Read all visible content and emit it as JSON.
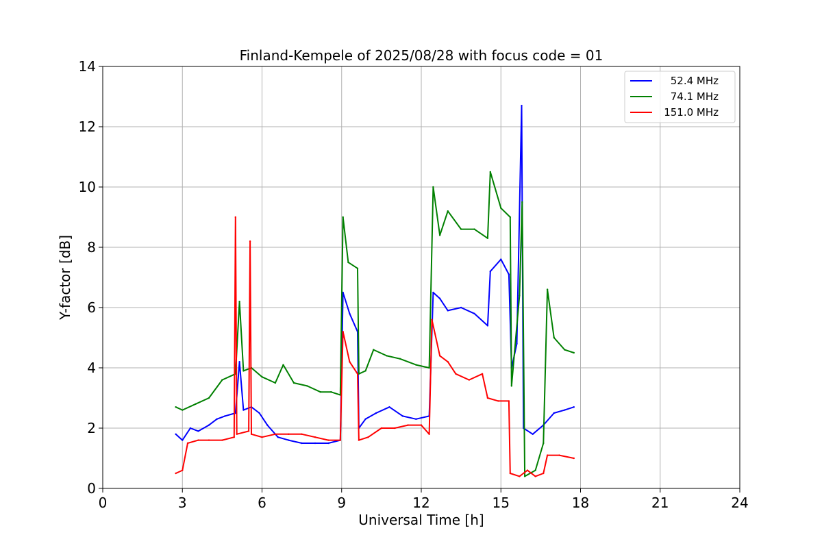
{
  "chart_data": {
    "type": "line",
    "title": "Finland-Kempele of 2025/08/28 with focus code = 01",
    "xlabel": "Universal Time [h]",
    "ylabel": "Y-factor [dB]",
    "xlim": [
      0,
      24
    ],
    "ylim": [
      0,
      14
    ],
    "xticks": [
      0,
      3,
      6,
      9,
      12,
      15,
      18,
      21,
      24
    ],
    "yticks": [
      0,
      2,
      4,
      6,
      8,
      10,
      12,
      14
    ],
    "grid": true,
    "legend_position": "top-right",
    "series": [
      {
        "name": "52.4 MHz",
        "color": "#0000ff",
        "points": [
          [
            2.75,
            1.8
          ],
          [
            3.0,
            1.6
          ],
          [
            3.3,
            2.0
          ],
          [
            3.6,
            1.9
          ],
          [
            4.0,
            2.1
          ],
          [
            4.3,
            2.3
          ],
          [
            4.6,
            2.4
          ],
          [
            5.0,
            2.5
          ],
          [
            5.15,
            4.2
          ],
          [
            5.3,
            2.6
          ],
          [
            5.6,
            2.7
          ],
          [
            5.9,
            2.5
          ],
          [
            6.2,
            2.1
          ],
          [
            6.6,
            1.7
          ],
          [
            7.0,
            1.6
          ],
          [
            7.5,
            1.5
          ],
          [
            8.0,
            1.5
          ],
          [
            8.5,
            1.5
          ],
          [
            8.95,
            1.6
          ],
          [
            9.05,
            6.5
          ],
          [
            9.3,
            5.8
          ],
          [
            9.6,
            5.2
          ],
          [
            9.65,
            2.0
          ],
          [
            9.9,
            2.3
          ],
          [
            10.3,
            2.5
          ],
          [
            10.8,
            2.7
          ],
          [
            11.3,
            2.4
          ],
          [
            11.8,
            2.3
          ],
          [
            12.3,
            2.4
          ],
          [
            12.45,
            6.5
          ],
          [
            12.7,
            6.3
          ],
          [
            13.0,
            5.9
          ],
          [
            13.5,
            6.0
          ],
          [
            14.0,
            5.8
          ],
          [
            14.5,
            5.4
          ],
          [
            14.6,
            7.2
          ],
          [
            15.0,
            7.6
          ],
          [
            15.3,
            7.1
          ],
          [
            15.4,
            4.0
          ],
          [
            15.6,
            4.8
          ],
          [
            15.78,
            12.7
          ],
          [
            15.85,
            2.0
          ],
          [
            16.2,
            1.8
          ],
          [
            16.6,
            2.1
          ],
          [
            17.0,
            2.5
          ],
          [
            17.4,
            2.6
          ],
          [
            17.75,
            2.7
          ]
        ]
      },
      {
        "name": "74.1 MHz",
        "color": "#008000",
        "points": [
          [
            2.75,
            2.7
          ],
          [
            3.0,
            2.6
          ],
          [
            3.5,
            2.8
          ],
          [
            4.0,
            3.0
          ],
          [
            4.5,
            3.6
          ],
          [
            5.0,
            3.8
          ],
          [
            5.15,
            6.2
          ],
          [
            5.3,
            3.9
          ],
          [
            5.6,
            4.0
          ],
          [
            6.0,
            3.7
          ],
          [
            6.5,
            3.5
          ],
          [
            6.8,
            4.1
          ],
          [
            7.2,
            3.5
          ],
          [
            7.7,
            3.4
          ],
          [
            8.2,
            3.2
          ],
          [
            8.6,
            3.2
          ],
          [
            8.95,
            3.1
          ],
          [
            9.05,
            9.0
          ],
          [
            9.25,
            7.5
          ],
          [
            9.6,
            7.3
          ],
          [
            9.65,
            3.8
          ],
          [
            9.9,
            3.9
          ],
          [
            10.2,
            4.6
          ],
          [
            10.7,
            4.4
          ],
          [
            11.2,
            4.3
          ],
          [
            11.8,
            4.1
          ],
          [
            12.3,
            4.0
          ],
          [
            12.45,
            10.0
          ],
          [
            12.7,
            8.4
          ],
          [
            13.0,
            9.2
          ],
          [
            13.5,
            8.6
          ],
          [
            14.0,
            8.6
          ],
          [
            14.5,
            8.3
          ],
          [
            14.6,
            10.5
          ],
          [
            15.0,
            9.3
          ],
          [
            15.35,
            9.0
          ],
          [
            15.4,
            3.4
          ],
          [
            15.7,
            6.4
          ],
          [
            15.8,
            9.5
          ],
          [
            15.9,
            0.4
          ],
          [
            16.3,
            0.6
          ],
          [
            16.6,
            1.5
          ],
          [
            16.75,
            6.6
          ],
          [
            17.0,
            5.0
          ],
          [
            17.4,
            4.6
          ],
          [
            17.75,
            4.5
          ]
        ]
      },
      {
        "name": "151.0 MHz",
        "color": "#ff0000",
        "points": [
          [
            2.75,
            0.5
          ],
          [
            3.0,
            0.6
          ],
          [
            3.2,
            1.5
          ],
          [
            3.6,
            1.6
          ],
          [
            4.0,
            1.6
          ],
          [
            4.5,
            1.6
          ],
          [
            4.95,
            1.7
          ],
          [
            5.0,
            9.0
          ],
          [
            5.05,
            1.8
          ],
          [
            5.5,
            1.9
          ],
          [
            5.55,
            8.2
          ],
          [
            5.6,
            1.8
          ],
          [
            6.0,
            1.7
          ],
          [
            6.5,
            1.8
          ],
          [
            7.0,
            1.8
          ],
          [
            7.5,
            1.8
          ],
          [
            8.0,
            1.7
          ],
          [
            8.5,
            1.6
          ],
          [
            8.95,
            1.6
          ],
          [
            9.05,
            5.2
          ],
          [
            9.3,
            4.2
          ],
          [
            9.6,
            3.8
          ],
          [
            9.65,
            1.6
          ],
          [
            10.0,
            1.7
          ],
          [
            10.5,
            2.0
          ],
          [
            11.0,
            2.0
          ],
          [
            11.5,
            2.1
          ],
          [
            12.0,
            2.1
          ],
          [
            12.3,
            1.8
          ],
          [
            12.4,
            5.6
          ],
          [
            12.7,
            4.4
          ],
          [
            13.0,
            4.2
          ],
          [
            13.3,
            3.8
          ],
          [
            13.8,
            3.6
          ],
          [
            14.3,
            3.8
          ],
          [
            14.5,
            3.0
          ],
          [
            14.9,
            2.9
          ],
          [
            15.3,
            2.9
          ],
          [
            15.35,
            0.5
          ],
          [
            15.7,
            0.4
          ],
          [
            16.0,
            0.6
          ],
          [
            16.3,
            0.4
          ],
          [
            16.6,
            0.5
          ],
          [
            16.75,
            1.1
          ],
          [
            17.2,
            1.1
          ],
          [
            17.75,
            1.0
          ]
        ]
      }
    ]
  }
}
